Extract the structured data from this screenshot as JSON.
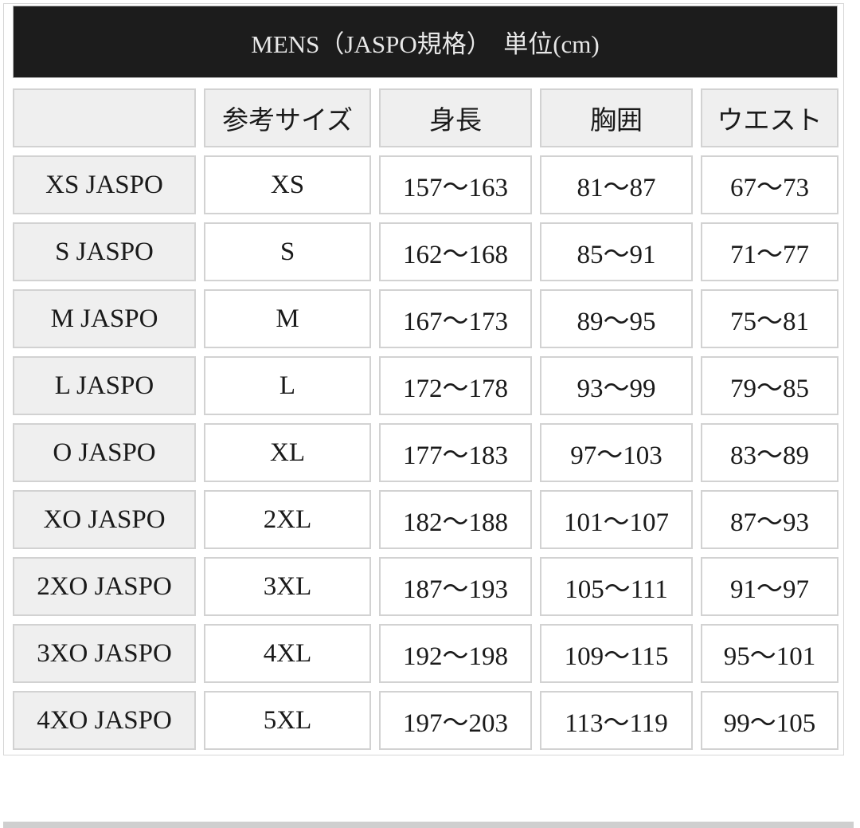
{
  "title": "MENS（JASPO規格）　単位(cm)",
  "headers": [
    "",
    "参考サイズ",
    "身長",
    "胸囲",
    "ウエスト"
  ],
  "rows": [
    [
      "XS JASPO",
      "XS",
      "157〜163",
      "81〜87",
      "67〜73"
    ],
    [
      "S JASPO",
      "S",
      "162〜168",
      "85〜91",
      "71〜77"
    ],
    [
      "M JASPO",
      "M",
      "167〜173",
      "89〜95",
      "75〜81"
    ],
    [
      "L JASPO",
      "L",
      "172〜178",
      "93〜99",
      "79〜85"
    ],
    [
      "O JASPO",
      "XL",
      "177〜183",
      "97〜103",
      "83〜89"
    ],
    [
      "XO JASPO",
      "2XL",
      "182〜188",
      "101〜107",
      "87〜93"
    ],
    [
      "2XO JASPO",
      "3XL",
      "187〜193",
      "105〜111",
      "91〜97"
    ],
    [
      "3XO JASPO",
      "4XL",
      "192〜198",
      "109〜115",
      "95〜101"
    ],
    [
      "4XO JASPO",
      "5XL",
      "197〜203",
      "113〜119",
      "99〜105"
    ]
  ],
  "colors": {
    "title_bg": "#1c1c1c",
    "header_cell_bg": "#efefef",
    "border": "#d2d2d2"
  }
}
